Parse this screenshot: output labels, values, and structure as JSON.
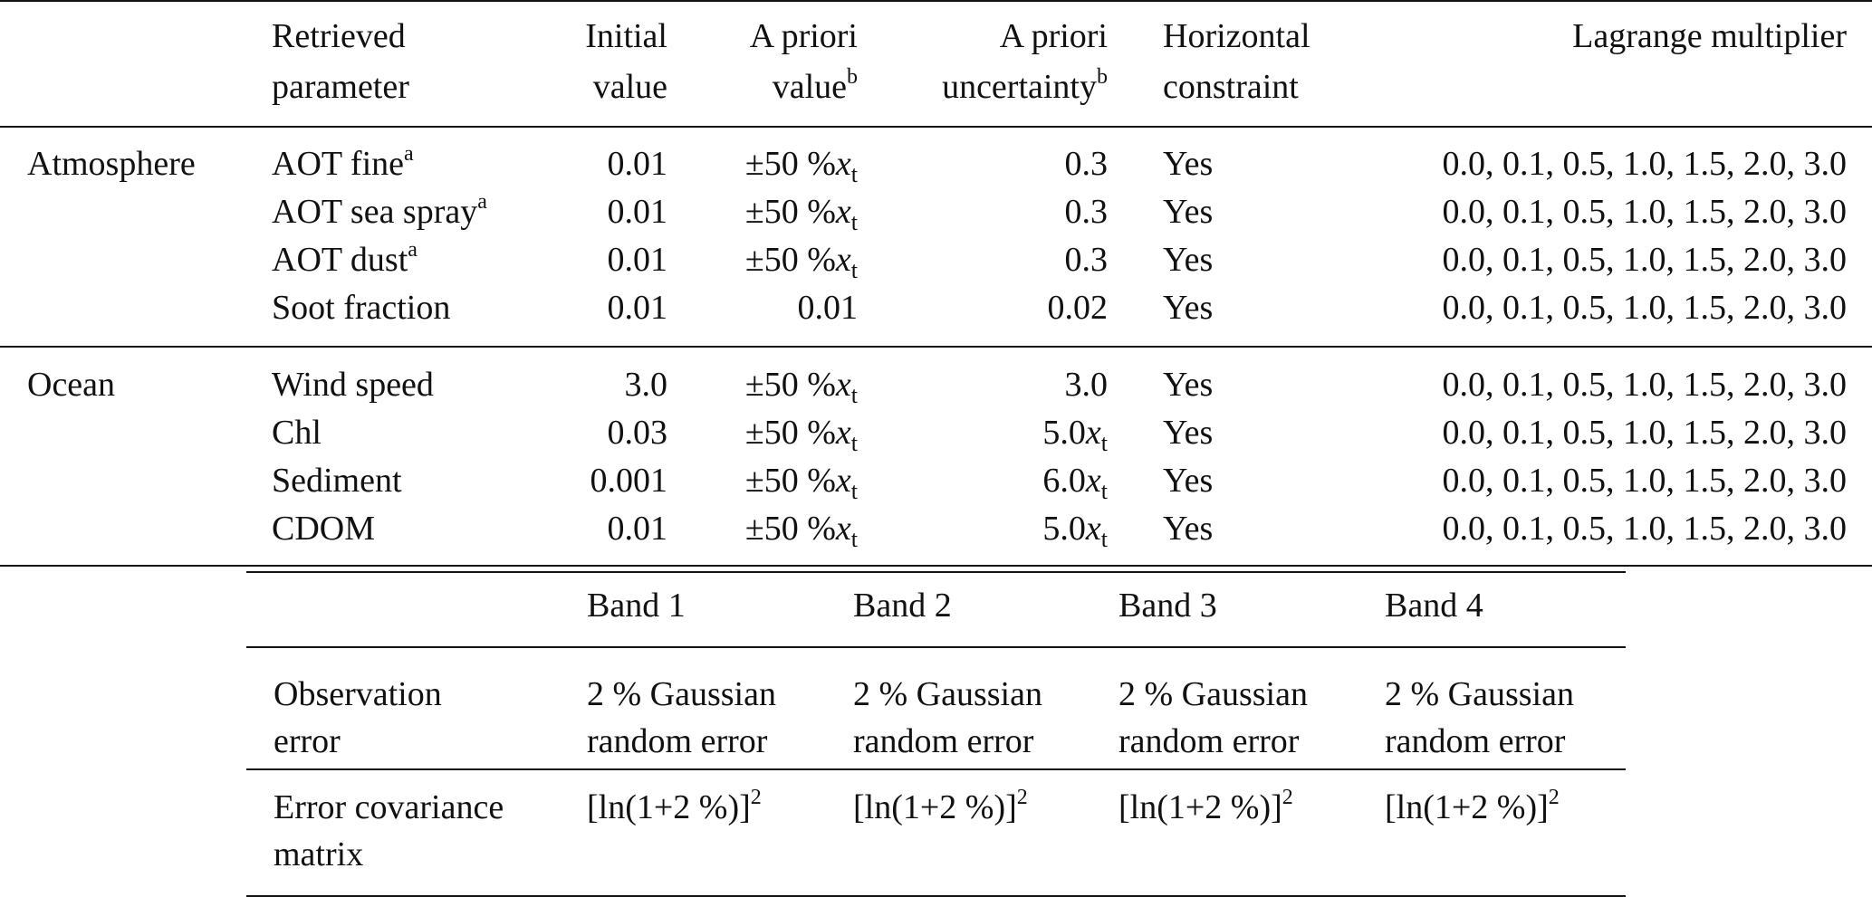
{
  "table1": {
    "headers": {
      "param_line1": "Retrieved",
      "param_line2": "parameter",
      "initial_line1": "Initial",
      "initial_line2": "value",
      "apv_line1": "A priori",
      "apv_line2": "value",
      "apv_sup": "b",
      "apu_line1": "A priori",
      "apu_line2": "uncertainty",
      "apu_sup": "b",
      "hc_line1": "Horizontal",
      "hc_line2": "constraint",
      "lagrange": "Lagrange multiplier"
    },
    "groups": [
      {
        "name": "Atmosphere",
        "rows": [
          {
            "param": "AOT fine",
            "sup": "a",
            "initial": "0.01",
            "apv": "±50 %",
            "apv_var": "x",
            "apv_sub": "t",
            "apu": "0.3",
            "apu_var": "",
            "apu_sub": "",
            "hc": "Yes",
            "lagrange": "0.0, 0.1, 0.5, 1.0, 1.5, 2.0, 3.0"
          },
          {
            "param": "AOT sea spray",
            "sup": "a",
            "initial": "0.01",
            "apv": "±50 %",
            "apv_var": "x",
            "apv_sub": "t",
            "apu": "0.3",
            "apu_var": "",
            "apu_sub": "",
            "hc": "Yes",
            "lagrange": "0.0, 0.1, 0.5, 1.0, 1.5, 2.0, 3.0"
          },
          {
            "param": "AOT dust",
            "sup": "a",
            "initial": "0.01",
            "apv": "±50 %",
            "apv_var": "x",
            "apv_sub": "t",
            "apu": "0.3",
            "apu_var": "",
            "apu_sub": "",
            "hc": "Yes",
            "lagrange": "0.0, 0.1, 0.5, 1.0, 1.5, 2.0, 3.0"
          },
          {
            "param": "Soot fraction",
            "sup": "",
            "initial": "0.01",
            "apv": "0.01",
            "apv_var": "",
            "apv_sub": "",
            "apu": "0.02",
            "apu_var": "",
            "apu_sub": "",
            "hc": "Yes",
            "lagrange": "0.0, 0.1, 0.5, 1.0, 1.5, 2.0, 3.0"
          }
        ]
      },
      {
        "name": "Ocean",
        "rows": [
          {
            "param": "Wind speed",
            "sup": "",
            "initial": "3.0",
            "apv": "±50 %",
            "apv_var": "x",
            "apv_sub": "t",
            "apu": "3.0",
            "apu_var": "",
            "apu_sub": "",
            "hc": "Yes",
            "lagrange": "0.0, 0.1, 0.5, 1.0, 1.5, 2.0, 3.0"
          },
          {
            "param": "Chl",
            "sup": "",
            "initial": "0.03",
            "apv": "±50 %",
            "apv_var": "x",
            "apv_sub": "t",
            "apu": "5.0",
            "apu_var": "x",
            "apu_sub": "t",
            "hc": "Yes",
            "lagrange": "0.0, 0.1, 0.5, 1.0, 1.5, 2.0, 3.0"
          },
          {
            "param": "Sediment",
            "sup": "",
            "initial": "0.001",
            "apv": "±50 %",
            "apv_var": "x",
            "apv_sub": "t",
            "apu": "6.0",
            "apu_var": "x",
            "apu_sub": "t",
            "hc": "Yes",
            "lagrange": "0.0, 0.1, 0.5, 1.0, 1.5, 2.0, 3.0"
          },
          {
            "param": "CDOM",
            "sup": "",
            "initial": "0.01",
            "apv": "±50 %",
            "apv_var": "x",
            "apv_sub": "t",
            "apu": "5.0",
            "apu_var": "x",
            "apu_sub": "t",
            "hc": "Yes",
            "lagrange": "0.0, 0.1, 0.5, 1.0, 1.5, 2.0, 3.0"
          }
        ]
      }
    ]
  },
  "table2": {
    "bands": [
      "Band 1",
      "Band 2",
      "Band 3",
      "Band 4"
    ],
    "obs_label_line1": "Observation",
    "obs_label_line2": "error",
    "obs_value_line1": "2 % Gaussian",
    "obs_value_line2": "random error",
    "cov_label_line1": "Error covariance",
    "cov_label_line2": "matrix",
    "cov_value": "[ln(1+2 %)]",
    "cov_sup": "2"
  }
}
